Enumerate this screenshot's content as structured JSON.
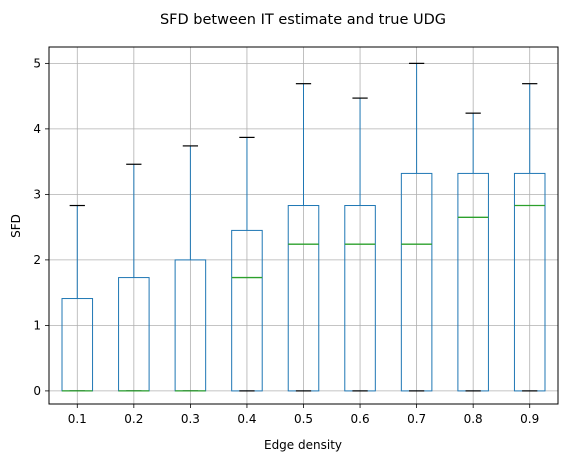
{
  "chart_data": {
    "type": "box",
    "title": "SFD between IT estimate and true UDG",
    "xlabel": "Edge density",
    "ylabel": "SFD",
    "ylim": [
      -0.2,
      5.25
    ],
    "yticks": [
      0,
      1,
      2,
      3,
      4,
      5
    ],
    "grid": true,
    "colors": {
      "box": "#1f77b4",
      "median": "#2ca02c",
      "cap": "#000000",
      "grid": "#b0b0b0"
    },
    "categories": [
      "0.1",
      "0.2",
      "0.3",
      "0.4",
      "0.5",
      "0.6",
      "0.7",
      "0.8",
      "0.9"
    ],
    "boxes": [
      {
        "category": "0.1",
        "whisker_low": 0,
        "q1": 0,
        "median": 0,
        "q3": 1.41,
        "whisker_high": 2.83
      },
      {
        "category": "0.2",
        "whisker_low": 0,
        "q1": 0,
        "median": 0,
        "q3": 1.73,
        "whisker_high": 3.46
      },
      {
        "category": "0.3",
        "whisker_low": 0,
        "q1": 0,
        "median": 0,
        "q3": 2.0,
        "whisker_high": 3.74
      },
      {
        "category": "0.4",
        "whisker_low": 0,
        "q1": 0,
        "median": 1.73,
        "q3": 2.45,
        "whisker_high": 3.87
      },
      {
        "category": "0.5",
        "whisker_low": 0,
        "q1": 0,
        "median": 2.24,
        "q3": 2.83,
        "whisker_high": 4.69
      },
      {
        "category": "0.6",
        "whisker_low": 0,
        "q1": 0,
        "median": 2.24,
        "q3": 2.83,
        "whisker_high": 4.47
      },
      {
        "category": "0.7",
        "whisker_low": 0,
        "q1": 0,
        "median": 2.24,
        "q3": 3.32,
        "whisker_high": 5.0
      },
      {
        "category": "0.8",
        "whisker_low": 0,
        "q1": 0,
        "median": 2.65,
        "q3": 3.32,
        "whisker_high": 4.24
      },
      {
        "category": "0.9",
        "whisker_low": 0,
        "q1": 0,
        "median": 2.83,
        "q3": 3.32,
        "whisker_high": 4.69
      }
    ]
  }
}
